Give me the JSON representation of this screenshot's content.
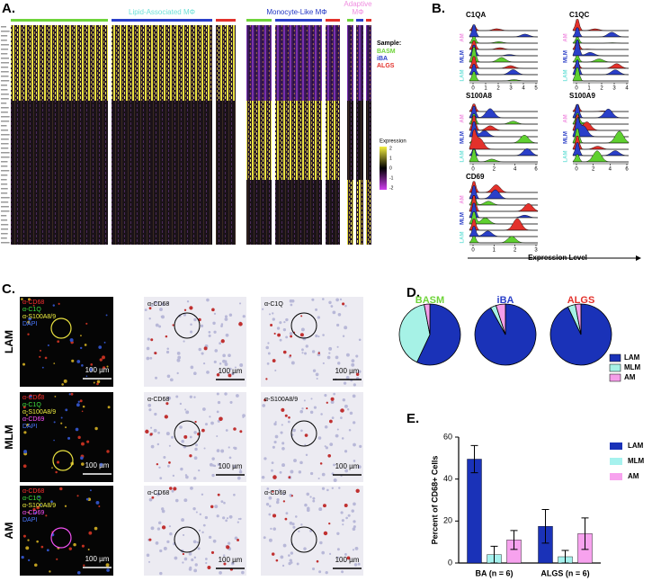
{
  "panels": {
    "A": "A.",
    "B": "B.",
    "C": "C.",
    "D": "D.",
    "E": "E."
  },
  "heatmap": {
    "groups": [
      {
        "name": "Lipid-Associated MΦ",
        "color": "#6ee0d8"
      },
      {
        "name": "Monocyte-Like MΦ",
        "color": "#2236c4"
      },
      {
        "name": "Adaptive MΦ",
        "color": "#f08ee0"
      }
    ],
    "legend_title": "Sample:",
    "samples": [
      {
        "name": "BASM",
        "color": "#6fd43a"
      },
      {
        "name": "iBA",
        "color": "#2a3fc9"
      },
      {
        "name": "ALGS",
        "color": "#e3312b"
      }
    ],
    "scale_title": "Expression",
    "scale_ticks": [
      2,
      1,
      0,
      -1,
      -2
    ]
  },
  "ridges": {
    "x_label": "Expression Level",
    "row_labels": [
      {
        "name": "AM",
        "color": "#f08ee0"
      },
      {
        "name": "MLM",
        "color": "#2236c4"
      },
      {
        "name": "LAM",
        "color": "#6ee0d8"
      }
    ],
    "plots": [
      {
        "gene": "C1QA",
        "ticks": [
          0,
          1,
          2,
          3,
          4,
          5
        ]
      },
      {
        "gene": "C1QC",
        "ticks": [
          0,
          1,
          2,
          3,
          4
        ]
      },
      {
        "gene": "S100A8",
        "ticks": [
          0,
          2,
          4,
          6
        ]
      },
      {
        "gene": "S100A9",
        "ticks": [
          0,
          2,
          4,
          6
        ]
      },
      {
        "gene": "CD69",
        "ticks": [
          0,
          1,
          2,
          3
        ]
      }
    ]
  },
  "ihc": {
    "rows": [
      "LAM",
      "MLM",
      "AM"
    ],
    "fluor_labels": [
      [
        {
          "text": "α-CD68",
          "color": "#ff3030"
        },
        {
          "text": "α-C1Q",
          "color": "#40e040"
        },
        {
          "text": "α-S100A8/9",
          "color": "#f0f040"
        },
        {
          "text": "DAPI",
          "color": "#4a78ff"
        }
      ],
      [
        {
          "text": "α-CD68",
          "color": "#ff3030"
        },
        {
          "text": "α-C1Q",
          "color": "#40e040"
        },
        {
          "text": "α-S100A8/9",
          "color": "#f0f040"
        },
        {
          "text": "α-CD69",
          "color": "#ff50ff"
        },
        {
          "text": "DAPI",
          "color": "#4a78ff"
        }
      ],
      [
        {
          "text": "α-CD68",
          "color": "#ff3030"
        },
        {
          "text": "α-C1Q",
          "color": "#40e040"
        },
        {
          "text": "α-S100A8/9",
          "color": "#f0f040"
        },
        {
          "text": "α-CD69",
          "color": "#ff50ff"
        },
        {
          "text": "DAPI",
          "color": "#4a78ff"
        }
      ]
    ],
    "stains": [
      [
        "α-CD68",
        "α-C1Q"
      ],
      [
        "α-CD68",
        "α-S100A8/9"
      ],
      [
        "α-CD68",
        "α-CD69"
      ]
    ],
    "scale": "100 µm"
  },
  "chart_data": [
    {
      "type": "pie",
      "categories": [
        "LAM",
        "MLM",
        "AM"
      ],
      "colors": [
        "#1a32b8",
        "#a6f2e6",
        "#f59ee9"
      ],
      "series": [
        {
          "name": "BASM",
          "color": "#6fd43a",
          "values": [
            57,
            40,
            3
          ]
        },
        {
          "name": "iBA",
          "color": "#2a3fc9",
          "values": [
            92,
            3,
            5
          ]
        },
        {
          "name": "ALGS",
          "color": "#e3312b",
          "values": [
            93,
            4,
            3
          ]
        }
      ]
    },
    {
      "type": "bar",
      "y_label": "Percent of CD68+ Cells",
      "categories": [
        "BA (n = 6)",
        "ALGS (n = 6)"
      ],
      "ylim": [
        0,
        60
      ],
      "yticks": [
        0,
        20,
        40,
        60
      ],
      "series": [
        {
          "name": "LAM",
          "color": "#1a32b8",
          "values": [
            49.5,
            17.5
          ],
          "errors": [
            6.5,
            8
          ]
        },
        {
          "name": "MLM",
          "color": "#a6f2ee",
          "values": [
            4,
            3
          ],
          "errors": [
            4,
            3
          ]
        },
        {
          "name": "AM",
          "color": "#f7a2ee",
          "values": [
            11,
            14
          ],
          "errors": [
            4.5,
            7.5
          ]
        }
      ]
    }
  ]
}
